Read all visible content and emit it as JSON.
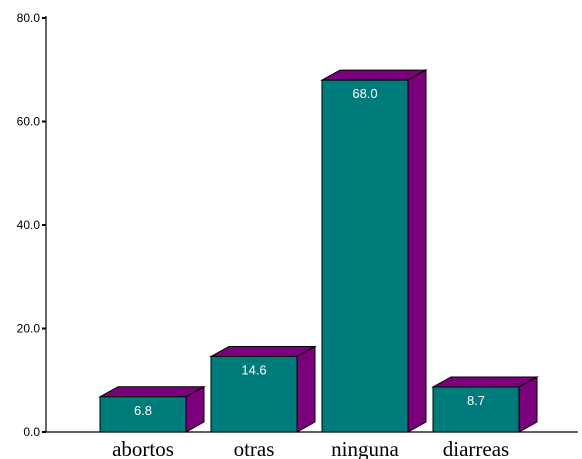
{
  "chart_data": {
    "type": "bar",
    "categories": [
      "abortos",
      "otras",
      "ninguna",
      "diarreas"
    ],
    "values": [
      6.8,
      14.6,
      68.0,
      8.7
    ],
    "data_labels": [
      "6.8",
      "14.6",
      "68.0",
      "8.7"
    ],
    "yticks": [
      {
        "value": 0,
        "label": "0.0"
      },
      {
        "value": 20,
        "label": "20.0"
      },
      {
        "value": 40,
        "label": "40.0"
      },
      {
        "value": 60,
        "label": "60.0"
      },
      {
        "value": 80,
        "label": "80.0"
      }
    ],
    "ylim": [
      0,
      80
    ],
    "grid": false,
    "legend": "none",
    "title": "",
    "xlabel": "",
    "ylabel": "",
    "colors": {
      "bar_front": "#007b7b",
      "bar_side": "#7b007b",
      "bar_top": "#7b007b",
      "outline": "#000000"
    }
  }
}
